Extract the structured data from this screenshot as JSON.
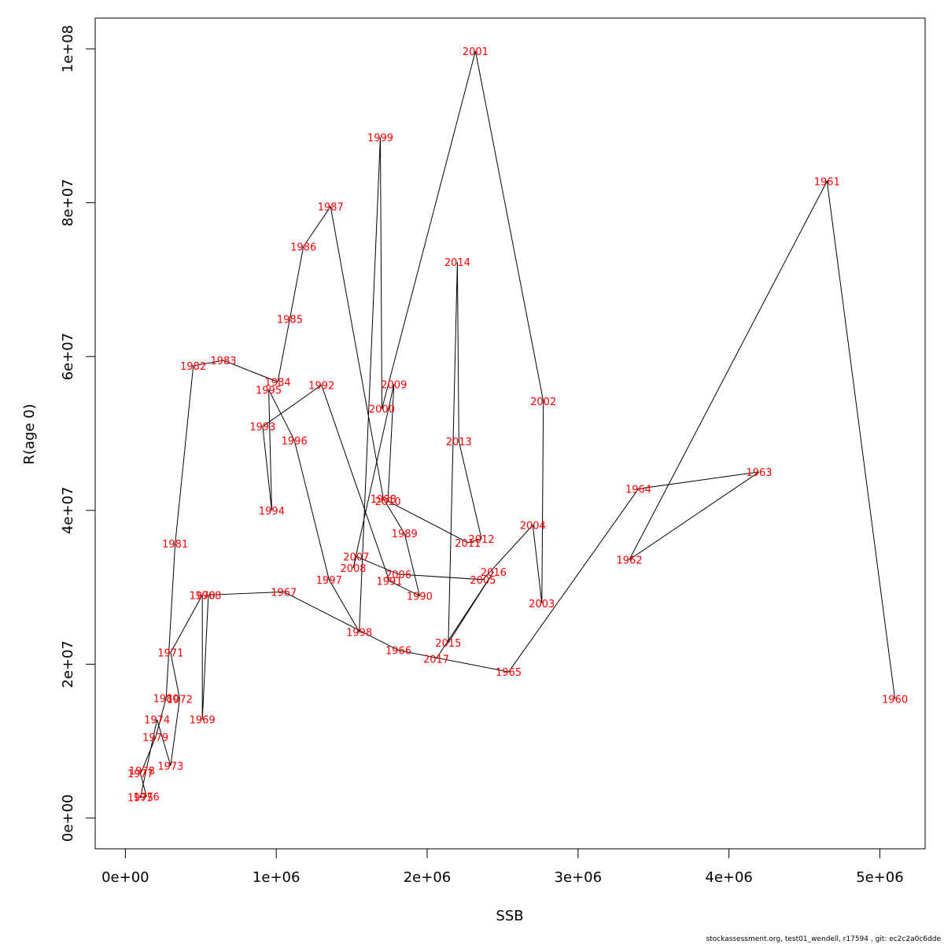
{
  "chart_data": {
    "type": "line",
    "xlabel": "SSB",
    "ylabel": "R(age 0)",
    "xlim": [
      -200000,
      5300000
    ],
    "ylim": [
      -4000000,
      104000000
    ],
    "x_ticks": [
      0,
      1000000,
      2000000,
      3000000,
      4000000,
      5000000
    ],
    "x_tick_labels": [
      "0e+00",
      "1e+06",
      "2e+06",
      "3e+06",
      "4e+06",
      "5e+06"
    ],
    "y_ticks": [
      0,
      20000000,
      40000000,
      60000000,
      80000000,
      100000000
    ],
    "y_tick_labels": [
      "0e+00",
      "2e+07",
      "4e+07",
      "6e+07",
      "8e+07",
      "1e+08"
    ],
    "label_color": "#ff0000",
    "line_color": "#000000",
    "points": [
      {
        "year": "1960",
        "ssb": 5100000,
        "r": 15500000
      },
      {
        "year": "1961",
        "ssb": 4650000,
        "r": 82800000
      },
      {
        "year": "1962",
        "ssb": 3340000,
        "r": 33600000
      },
      {
        "year": "1963",
        "ssb": 4200000,
        "r": 45000000
      },
      {
        "year": "1964",
        "ssb": 3400000,
        "r": 42800000
      },
      {
        "year": "1965",
        "ssb": 2540000,
        "r": 19000000
      },
      {
        "year": "1966",
        "ssb": 1810000,
        "r": 21800000
      },
      {
        "year": "1967",
        "ssb": 1050000,
        "r": 29400000
      },
      {
        "year": "1968",
        "ssb": 550000,
        "r": 29000000
      },
      {
        "year": "1969",
        "ssb": 510000,
        "r": 12800000
      },
      {
        "year": "1970",
        "ssb": 510000,
        "r": 29000000
      },
      {
        "year": "1971",
        "ssb": 300000,
        "r": 21500000
      },
      {
        "year": "1972",
        "ssb": 360000,
        "r": 15500000
      },
      {
        "year": "1973",
        "ssb": 300000,
        "r": 6800000
      },
      {
        "year": "1974",
        "ssb": 210000,
        "r": 12800000
      },
      {
        "year": "1975",
        "ssb": 100000,
        "r": 2700000
      },
      {
        "year": "1976",
        "ssb": 140000,
        "r": 2800000
      },
      {
        "year": "1977",
        "ssb": 100000,
        "r": 5800000
      },
      {
        "year": "1978",
        "ssb": 110000,
        "r": 6200000
      },
      {
        "year": "1979",
        "ssb": 200000,
        "r": 10500000
      },
      {
        "year": "1980",
        "ssb": 270000,
        "r": 15600000
      },
      {
        "year": "1981",
        "ssb": 330000,
        "r": 35700000
      },
      {
        "year": "1982",
        "ssb": 450000,
        "r": 58800000
      },
      {
        "year": "1983",
        "ssb": 650000,
        "r": 59500000
      },
      {
        "year": "1984",
        "ssb": 1010000,
        "r": 56700000
      },
      {
        "year": "1985",
        "ssb": 1090000,
        "r": 64900000
      },
      {
        "year": "1986",
        "ssb": 1180000,
        "r": 74300000
      },
      {
        "year": "1987",
        "ssb": 1360000,
        "r": 79500000
      },
      {
        "year": "1988",
        "ssb": 1710000,
        "r": 41500000
      },
      {
        "year": "1989",
        "ssb": 1850000,
        "r": 37000000
      },
      {
        "year": "1990",
        "ssb": 1950000,
        "r": 28900000
      },
      {
        "year": "1991",
        "ssb": 1750000,
        "r": 30800000
      },
      {
        "year": "1992",
        "ssb": 1300000,
        "r": 56300000
      },
      {
        "year": "1993",
        "ssb": 910000,
        "r": 50900000
      },
      {
        "year": "1994",
        "ssb": 970000,
        "r": 40000000
      },
      {
        "year": "1995",
        "ssb": 950000,
        "r": 55700000
      },
      {
        "year": "1996",
        "ssb": 1120000,
        "r": 49100000
      },
      {
        "year": "1997",
        "ssb": 1350000,
        "r": 31000000
      },
      {
        "year": "1998",
        "ssb": 1550000,
        "r": 24200000
      },
      {
        "year": "1999",
        "ssb": 1690000,
        "r": 88500000
      },
      {
        "year": "2000",
        "ssb": 1700000,
        "r": 53200000
      },
      {
        "year": "2001",
        "ssb": 2320000,
        "r": 99700000
      },
      {
        "year": "2002",
        "ssb": 2770000,
        "r": 54200000
      },
      {
        "year": "2003",
        "ssb": 2760000,
        "r": 27900000
      },
      {
        "year": "2004",
        "ssb": 2700000,
        "r": 38100000
      },
      {
        "year": "2005",
        "ssb": 2370000,
        "r": 31000000
      },
      {
        "year": "2006",
        "ssb": 1810000,
        "r": 31700000
      },
      {
        "year": "2007",
        "ssb": 1530000,
        "r": 34000000
      },
      {
        "year": "2008",
        "ssb": 1510000,
        "r": 32500000
      },
      {
        "year": "2009",
        "ssb": 1780000,
        "r": 56400000
      },
      {
        "year": "2010",
        "ssb": 1740000,
        "r": 41200000
      },
      {
        "year": "2011",
        "ssb": 2270000,
        "r": 35800000
      },
      {
        "year": "2012",
        "ssb": 2360000,
        "r": 36300000
      },
      {
        "year": "2013",
        "ssb": 2210000,
        "r": 49000000
      },
      {
        "year": "2014",
        "ssb": 2200000,
        "r": 72300000
      },
      {
        "year": "2015",
        "ssb": 2140000,
        "r": 22800000
      },
      {
        "year": "2016",
        "ssb": 2440000,
        "r": 32000000
      },
      {
        "year": "2017",
        "ssb": 2060000,
        "r": 20700000
      }
    ]
  },
  "footer": "stockassessment.org, test01_wendell, r17594 , git: ec2c2a0c6dde"
}
